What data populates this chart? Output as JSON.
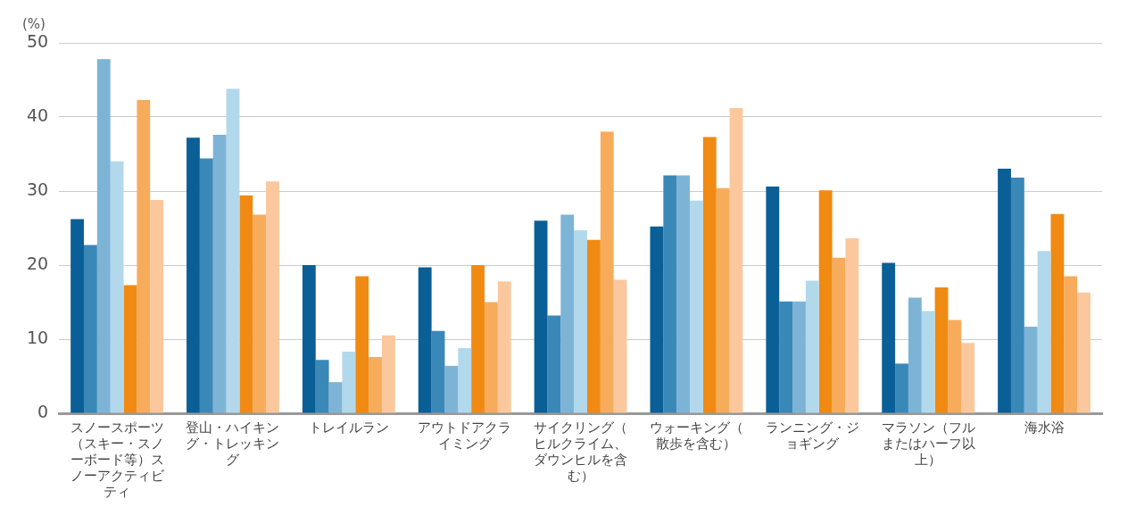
{
  "chart_data": {
    "type": "bar",
    "ylabel": "(%)",
    "categories": [
      "スノースポーツ（スキー・スノーボード等）スノーアクティビティ",
      "登山・ハイキング・トレッキング",
      "トレイルラン",
      "アウトドアクライミング",
      "サイクリング（ヒルクライム、ダウンヒルを含む）",
      "ウォーキング（散歩を含む）",
      "ランニング・ジョギング",
      "マラソン（フルまたはハーフ以上）",
      "海水浴"
    ],
    "series": [
      {
        "color": "#0a5f96",
        "values": [
          26.2,
          37.2,
          20,
          19.7,
          26,
          25.2,
          30.6,
          20.3,
          33
        ]
      },
      {
        "color": "#3a88b8",
        "values": [
          22.7,
          34.4,
          7.2,
          11.1,
          13.2,
          32.1,
          15.1,
          6.7,
          31.8
        ]
      },
      {
        "color": "#7db4d6",
        "values": [
          47.8,
          37.6,
          4.2,
          6.4,
          26.8,
          32.1,
          15.1,
          15.6,
          11.7
        ]
      },
      {
        "color": "#b2d8ec",
        "values": [
          34,
          43.8,
          8.3,
          8.8,
          24.7,
          28.7,
          17.9,
          13.8,
          21.9
        ]
      },
      {
        "color": "#f08a12",
        "values": [
          17.3,
          29.4,
          18.5,
          20,
          23.4,
          37.3,
          30.1,
          17,
          26.9
        ]
      },
      {
        "color": "#f7ac5c",
        "values": [
          42.3,
          26.8,
          7.6,
          15,
          38,
          30.4,
          21,
          12.6,
          18.5
        ]
      },
      {
        "color": "#fbc89e",
        "values": [
          28.8,
          31.3,
          10.5,
          17.8,
          18,
          41.2,
          23.6,
          9.5,
          16.3
        ]
      }
    ],
    "ylim": [
      0,
      50
    ],
    "yticks": [
      0,
      10,
      20,
      30,
      40,
      50
    ],
    "grid": "y",
    "legend": false
  }
}
